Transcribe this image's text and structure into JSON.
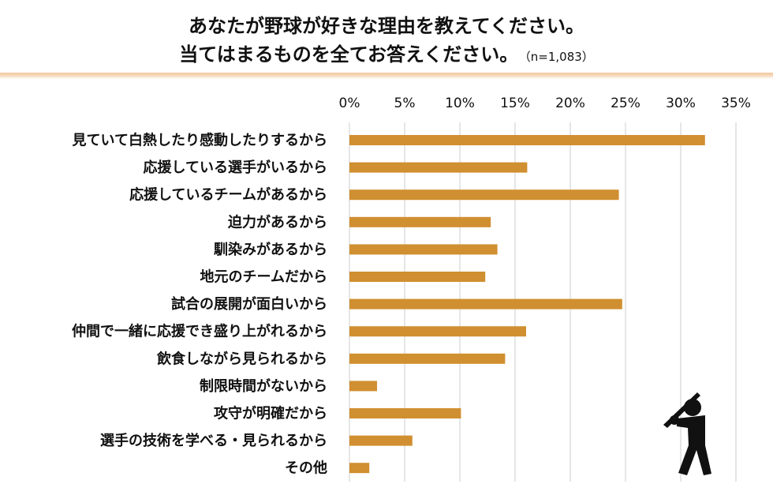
{
  "header": {
    "title_line1": "あなたが野球が好きな理由を教えてください。",
    "title_line2": "当てはまるものを全てお答えください。",
    "sample_size": "（n=1,083）"
  },
  "chart_data": {
    "type": "bar",
    "orientation": "horizontal",
    "categories": [
      "見ていて白熱したり感動したりするから",
      "応援している選手がいるから",
      "応援しているチームがあるから",
      "迫力があるから",
      "馴染みがあるから",
      "地元のチームだから",
      "試合の展開が面白いから",
      "仲間で一緒に応援でき盛り上がれるから",
      "飲食しながら見られるから",
      "制限時間がないから",
      "攻守が明確だから",
      "選手の技術を学べる・見られるから",
      "その他"
    ],
    "values": [
      32.2,
      16.1,
      24.4,
      12.8,
      13.4,
      12.3,
      24.7,
      16.0,
      14.1,
      2.5,
      10.1,
      5.7,
      1.8
    ],
    "unit": "%",
    "xlim": [
      0,
      35
    ],
    "xticks": [
      "0%",
      "5%",
      "10%",
      "15%",
      "20%",
      "25%",
      "30%",
      "35%"
    ],
    "x_axis_position": "top",
    "grid": "vertical",
    "bar_color": "#d08f30",
    "grid_color": "#cccccc",
    "legend": "none"
  },
  "decoration": {
    "icon": "baseball-batter-icon",
    "icon_color": "#111111"
  }
}
